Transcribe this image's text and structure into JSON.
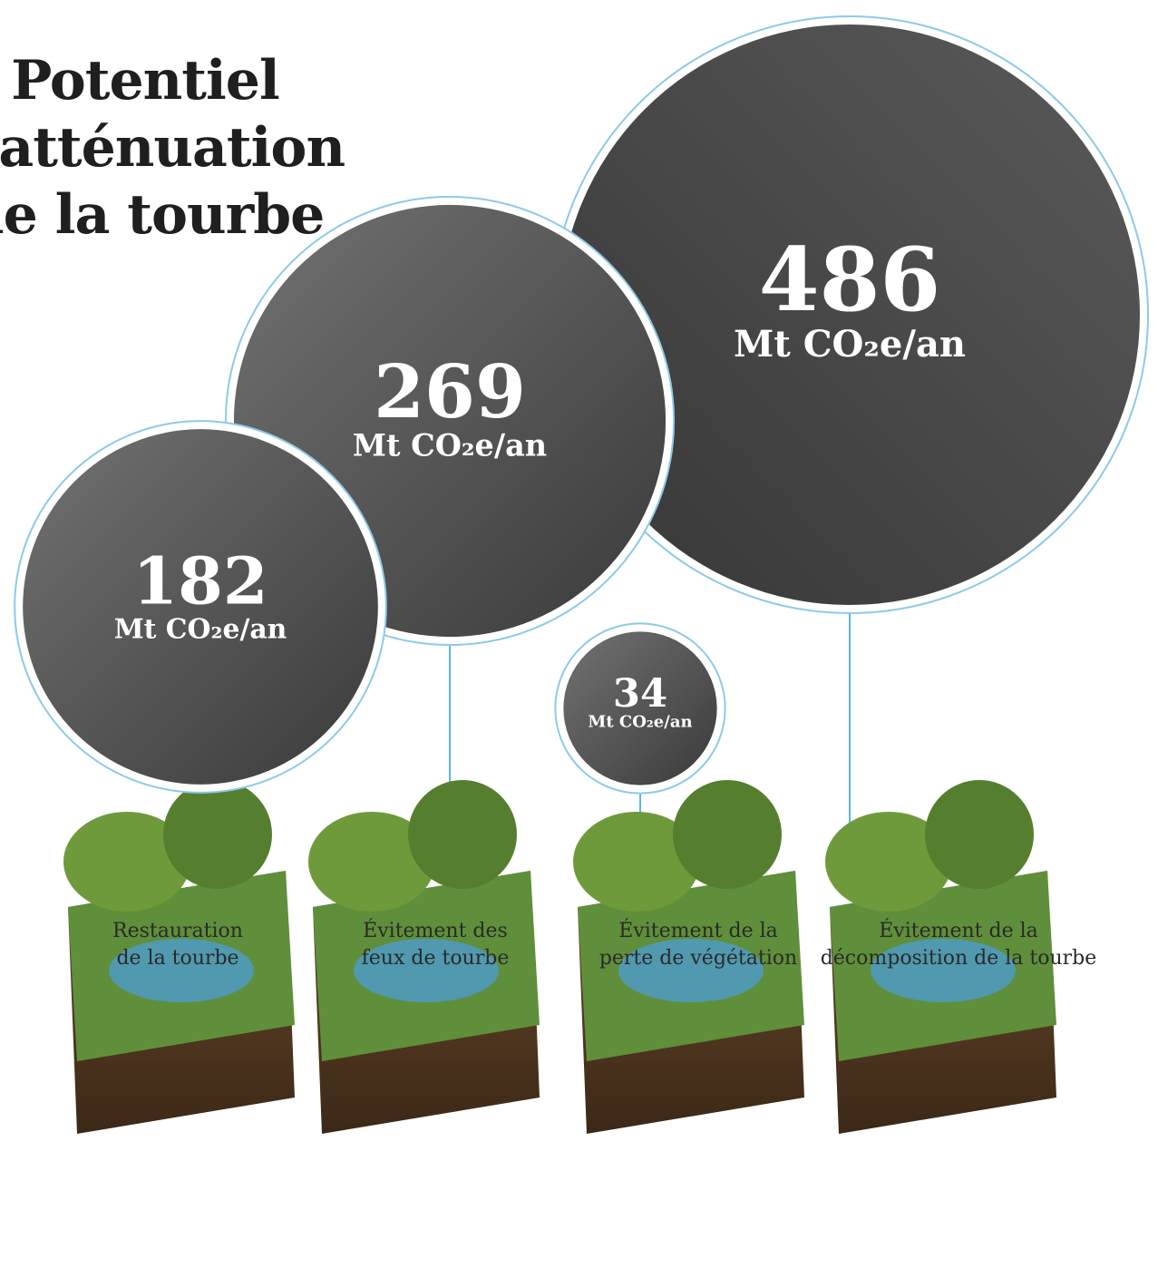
{
  "title_lines": [
    "Potentiel",
    "d'atténuation",
    "de la tourbe"
  ],
  "chart_data": {
    "type": "bubble",
    "unit": "Mt CO₂e/an",
    "categories": [
      [
        "Restauration",
        "de la tourbe"
      ],
      [
        "Évitement des",
        "feux de tourbe"
      ],
      [
        "Évitement de la",
        "perte de végétation"
      ],
      [
        "Évitement de la",
        "décomposition de la tourbe"
      ]
    ],
    "values": [
      182,
      269,
      34,
      486
    ],
    "colors": {
      "bubble_dark": "#3b3b3b",
      "bubble_light": "#6e6e6e",
      "ring": "#8ec9e8",
      "connector": "#5cb3e0"
    }
  }
}
